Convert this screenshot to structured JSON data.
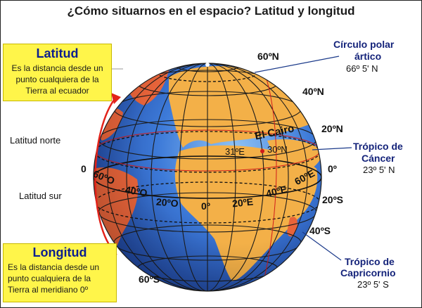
{
  "title": "¿Cómo situarnos en el espacio? Latitud y longitud",
  "latitud": {
    "heading": "Latitud",
    "description": "Es la distancia desde un punto cualquiera de la Tierra al ecuador"
  },
  "longitud": {
    "heading": "Longitud",
    "description": "Es la distancia desde un punto cualquiera de la Tierra al meridiano 0º"
  },
  "side_labels": {
    "north": "Latitud norte",
    "zero": "0",
    "south": "Latitud sur"
  },
  "latitude_marks": {
    "n60": "60ºN",
    "n40": "40ºN",
    "n20": "20ºN",
    "zero": "0º",
    "s20": "20ºS",
    "s40": "40ºS",
    "s60": "60ºS"
  },
  "longitude_marks": {
    "w60": "60ºO",
    "w40": "40ºO",
    "w20": "20ºO",
    "zero": "0º",
    "e20": "20ºE",
    "e40": "40ºE",
    "e60": "60ºE"
  },
  "cairo": {
    "name": "El Cairo",
    "lon": "31ºE",
    "lat": "30ºN"
  },
  "arctic_circle": {
    "name_line1": "Círculo polar",
    "name_line2": "ártico",
    "value": "66º 5' N"
  },
  "cancer": {
    "name_line1": "Trópico de",
    "name_line2": "Cáncer",
    "value": "23º 5' N"
  },
  "capricorn": {
    "name_line1": "Trópico de",
    "name_line2": "Capricornio",
    "value": "23º 5' S"
  },
  "colors": {
    "ocean": "#2f63c8",
    "land": "#f3b048",
    "box_fill": "#fff54a",
    "heading": "#0b1e8f",
    "arrow": "#e2231a"
  }
}
